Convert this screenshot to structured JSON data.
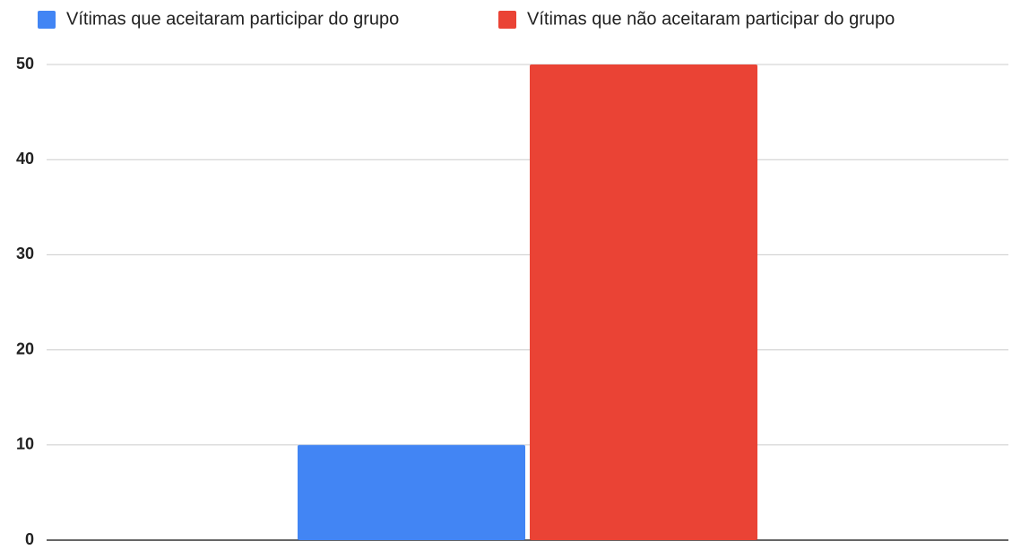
{
  "chart_data": {
    "type": "bar",
    "categories": [
      null
    ],
    "series": [
      {
        "name": "Vítimas que aceitaram participar do grupo",
        "color": "#4285f4",
        "values": [
          10
        ]
      },
      {
        "name": "Vítimas que não aceitaram participar do grupo",
        "color": "#ea4335",
        "values": [
          50
        ]
      }
    ],
    "ylim": [
      0,
      50
    ],
    "yticks": [
      0,
      10,
      20,
      30,
      40,
      50
    ],
    "grid": true,
    "legend": "top"
  }
}
